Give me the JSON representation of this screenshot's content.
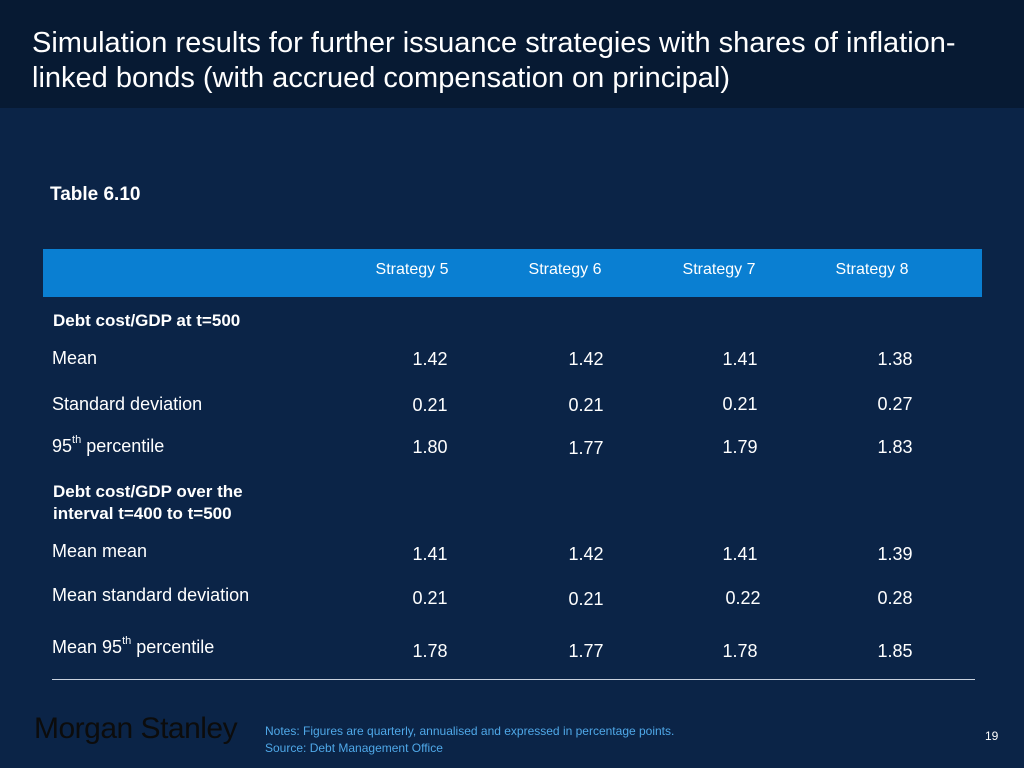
{
  "title": "Simulation results for further issuance strategies with shares of inflation-linked bonds (with accrued compensation on principal)",
  "table_label": "Table 6.10",
  "columns": [
    "Strategy 5",
    "Strategy 6",
    "Strategy 7",
    "Strategy 8"
  ],
  "section1": {
    "heading": "Debt cost/GDP at t=500",
    "rows": [
      {
        "label": "Mean",
        "values": [
          "1.42",
          "1.42",
          "1.41",
          "1.38"
        ]
      },
      {
        "label": "Standard deviation",
        "values": [
          "0.21",
          "0.21",
          "0.21",
          "0.27"
        ]
      },
      {
        "label_prefix": "95",
        "label_sup": "th",
        "label_suffix": " percentile",
        "values": [
          "1.80",
          "1.77",
          "1.79",
          "1.83"
        ]
      }
    ]
  },
  "section2": {
    "heading_line1": "Debt cost/GDP over the",
    "heading_line2": "interval t=400 to t=500",
    "rows": [
      {
        "label": "Mean mean",
        "values": [
          "1.41",
          "1.42",
          "1.41",
          "1.39"
        ]
      },
      {
        "label": "Mean standard deviation",
        "values": [
          "0.21",
          "0.21",
          "0.22",
          "0.28"
        ]
      },
      {
        "label_prefix": "Mean 95",
        "label_sup": "th",
        "label_suffix": " percentile",
        "values": [
          "1.78",
          "1.77",
          "1.78",
          "1.85"
        ]
      }
    ]
  },
  "logo": "Morgan Stanley",
  "notes_line1": "Notes: Figures are quarterly, annualised and expressed in percentage points.",
  "notes_line2": "Source: Debt Management Office",
  "page_number": "19",
  "colors": {
    "background": "#0b2447",
    "title_bar": "#071a33",
    "header_row": "#0a7fd2",
    "notes": "#4fa8e8"
  }
}
